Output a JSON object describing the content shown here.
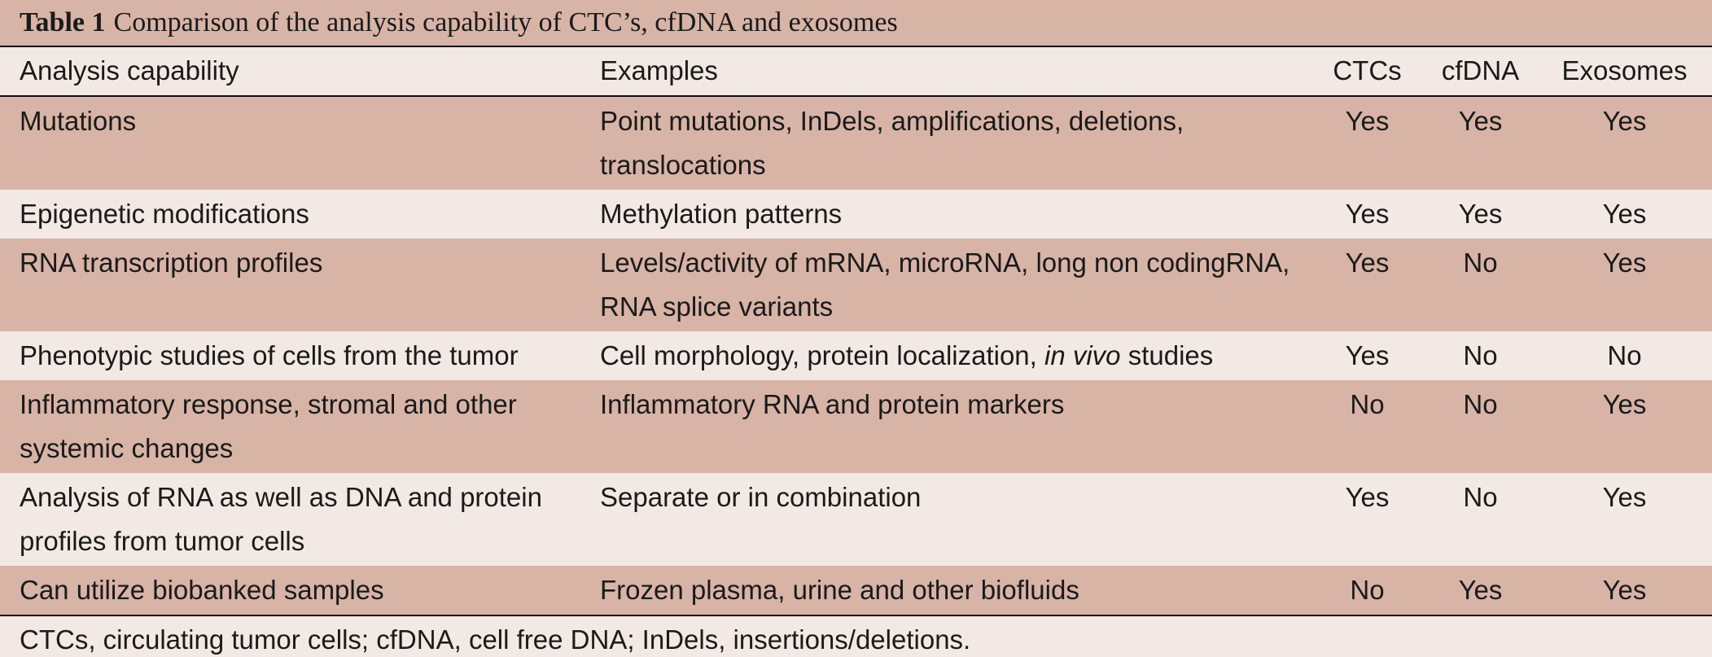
{
  "title": {
    "label": "Table 1",
    "text": "Comparison of the analysis capability of CTC’s, cfDNA and exosomes"
  },
  "headers": {
    "capability": "Analysis capability",
    "examples": "Examples",
    "ctcs": "CTCs",
    "cfdna": "cfDNA",
    "exosomes": "Exosomes"
  },
  "rows": [
    {
      "capability": "Mutations",
      "examples_pre": "Point mutations, InDels, amplifications, deletions, translocations",
      "examples_italic": "",
      "examples_post": "",
      "ctcs": "Yes",
      "cfdna": "Yes",
      "exosomes": "Yes"
    },
    {
      "capability": "Epigenetic modifications",
      "examples_pre": "Methylation patterns",
      "examples_italic": "",
      "examples_post": "",
      "ctcs": "Yes",
      "cfdna": "Yes",
      "exosomes": "Yes"
    },
    {
      "capability": "RNA transcription profiles",
      "examples_pre": "Levels/activity of mRNA, microRNA, long non codingRNA, RNA splice variants",
      "examples_italic": "",
      "examples_post": "",
      "ctcs": "Yes",
      "cfdna": "No",
      "exosomes": "Yes"
    },
    {
      "capability": "Phenotypic studies of cells from the tumor",
      "examples_pre": "Cell morphology, protein localization, ",
      "examples_italic": "in vivo",
      "examples_post": " studies",
      "ctcs": "Yes",
      "cfdna": "No",
      "exosomes": "No"
    },
    {
      "capability": "Inflammatory response, stromal and other systemic changes",
      "examples_pre": "Inflammatory RNA and protein markers",
      "examples_italic": "",
      "examples_post": "",
      "ctcs": "No",
      "cfdna": "No",
      "exosomes": "Yes"
    },
    {
      "capability": "Analysis of RNA as well as DNA and protein profiles from tumor cells",
      "examples_pre": "Separate or in combination",
      "examples_italic": "",
      "examples_post": "",
      "ctcs": "Yes",
      "cfdna": "No",
      "exosomes": "Yes"
    },
    {
      "capability": "Can utilize biobanked samples",
      "examples_pre": "Frozen plasma, urine and other biofluids",
      "examples_italic": "",
      "examples_post": "",
      "ctcs": "No",
      "cfdna": "Yes",
      "exosomes": "Yes"
    }
  ],
  "footnote": "CTCs, circulating tumor cells; cfDNA, cell free DNA; InDels, insertions/deletions."
}
